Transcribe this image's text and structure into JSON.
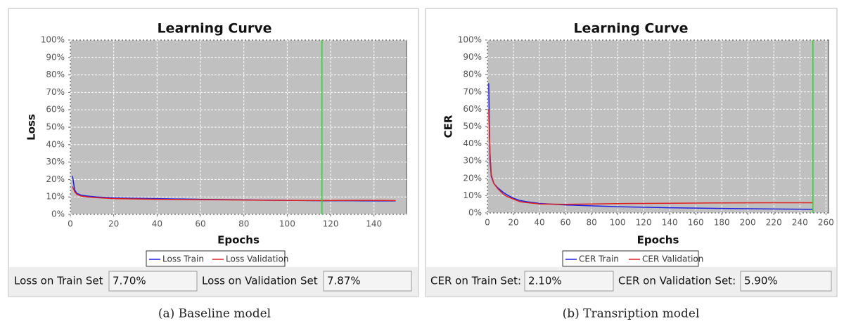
{
  "chart_data": [
    {
      "type": "line",
      "title": "Learning Curve",
      "x_label": "Epochs",
      "y_label": "Loss",
      "x": [
        1,
        2,
        3,
        5,
        8,
        12,
        20,
        30,
        40,
        60,
        80,
        100,
        116,
        130,
        140,
        150
      ],
      "series": [
        {
          "name": "Loss Train",
          "color": "#2020e0",
          "values": [
            22,
            14,
            12,
            11,
            10.5,
            10,
            9.5,
            9.2,
            9,
            8.6,
            8.3,
            8,
            7.8,
            7.8,
            7.7,
            7.7
          ]
        },
        {
          "name": "Loss Validation",
          "color": "#e02020",
          "values": [
            16,
            13,
            11.5,
            10.5,
            10,
            9.6,
            9,
            8.8,
            8.6,
            8.4,
            8.2,
            8,
            7.9,
            8,
            8,
            7.9
          ]
        }
      ],
      "xlim": [
        0,
        155
      ],
      "xticks": [
        0,
        20,
        40,
        60,
        80,
        100,
        120,
        140
      ],
      "ylim": [
        0,
        100
      ],
      "yticks": [
        {
          "value": 0,
          "label": "0%"
        },
        {
          "value": 10,
          "label": "10%"
        },
        {
          "value": 20,
          "label": "20%"
        },
        {
          "value": 30,
          "label": "30%"
        },
        {
          "value": 40,
          "label": "40%"
        },
        {
          "value": 50,
          "label": "50%"
        },
        {
          "value": 60,
          "label": "60%"
        },
        {
          "value": 70,
          "label": "70%"
        },
        {
          "value": 80,
          "label": "80%"
        },
        {
          "value": 90,
          "label": "90%"
        },
        {
          "value": 100,
          "label": "100%"
        }
      ],
      "grid": true,
      "vline_x": 116,
      "vline_color": "#22dd22"
    },
    {
      "type": "line",
      "title": "Learning Curve",
      "x_label": "Epochs",
      "y_label": "CER",
      "x": [
        1,
        2,
        3,
        5,
        8,
        12,
        15,
        20,
        25,
        30,
        40,
        60,
        80,
        100,
        140,
        180,
        220,
        250
      ],
      "series": [
        {
          "name": "CER Train",
          "color": "#2020e0",
          "values": [
            75,
            30,
            21,
            17,
            14.5,
            12,
            10.5,
            8.5,
            7.2,
            6.5,
            5.5,
            4.6,
            4.1,
            3.6,
            3,
            2.6,
            2.3,
            2.1
          ]
        },
        {
          "name": "CER Validation",
          "color": "#e02020",
          "values": [
            60,
            35,
            22,
            17,
            14,
            11,
            9.5,
            8,
            6.5,
            6,
            5.2,
            5,
            5.2,
            5.4,
            5.6,
            5.8,
            5.9,
            5.9
          ]
        }
      ],
      "xlim": [
        0,
        262
      ],
      "xticks": [
        0,
        20,
        40,
        60,
        80,
        100,
        120,
        140,
        160,
        180,
        200,
        220,
        240,
        260
      ],
      "ylim": [
        0,
        100
      ],
      "yticks": [
        {
          "value": 0,
          "label": "0%"
        },
        {
          "value": 10,
          "label": "10%"
        },
        {
          "value": 20,
          "label": "20%"
        },
        {
          "value": 30,
          "label": "30%"
        },
        {
          "value": 40,
          "label": "40%"
        },
        {
          "value": 50,
          "label": "50%"
        },
        {
          "value": 60,
          "label": "60%"
        },
        {
          "value": 70,
          "label": "70%"
        },
        {
          "value": 80,
          "label": "80%"
        },
        {
          "value": 90,
          "label": "90%"
        },
        {
          "value": 100,
          "label": "100%"
        }
      ],
      "grid": true,
      "vline_x": 250,
      "vline_color": "#22dd22"
    }
  ],
  "panels": [
    {
      "stats": [
        {
          "label": "Loss on Train Set",
          "value": "7.70%"
        },
        {
          "label": "Loss on Validation Set",
          "value": "7.87%"
        }
      ],
      "caption": "(a)  Baseline model"
    },
    {
      "stats": [
        {
          "label": "CER on Train Set:",
          "value": "2.10%"
        },
        {
          "label": "CER on Validation Set:",
          "value": "5.90%"
        }
      ],
      "caption": "(b)  Transription model"
    }
  ]
}
